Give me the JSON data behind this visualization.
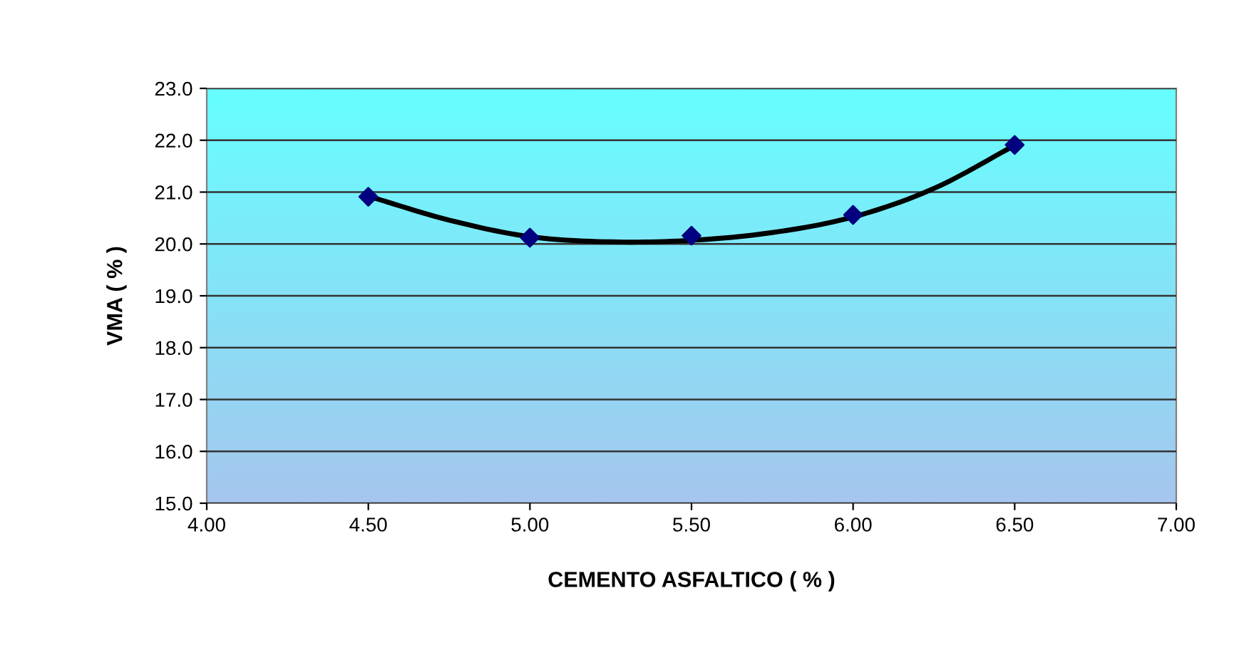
{
  "chart_data": {
    "type": "scatter",
    "xlabel": "CEMENTO ASFALTICO ( % )",
    "ylabel": "VMA ( % )",
    "series": [
      {
        "color": "#000080",
        "marker": "diamond",
        "x": [
          4.5,
          5.0,
          5.5,
          6.0,
          6.5
        ],
        "values": [
          20.91,
          20.12,
          20.16,
          20.56,
          21.91
        ]
      },
      {
        "type": "line",
        "color": "#000000",
        "marker": "none",
        "x": [
          4.5,
          4.75,
          5.0,
          5.25,
          5.5,
          5.75,
          6.0,
          6.25,
          6.5
        ],
        "values": [
          20.92,
          20.46,
          20.14,
          20.04,
          20.07,
          20.22,
          20.52,
          21.07,
          21.9
        ]
      }
    ],
    "xlim": [
      4.0,
      7.0
    ],
    "xticks": [
      {
        "value": 4.0,
        "label": "4.00"
      },
      {
        "value": 4.5,
        "label": "4.50"
      },
      {
        "value": 5.0,
        "label": "5.00"
      },
      {
        "value": 5.5,
        "label": "5.50"
      },
      {
        "value": 6.0,
        "label": "6.00"
      },
      {
        "value": 6.5,
        "label": "6.50"
      },
      {
        "value": 7.0,
        "label": "7.00"
      }
    ],
    "ylim": [
      15.0,
      23.0
    ],
    "yticks": [
      {
        "value": 15,
        "label": "15.0"
      },
      {
        "value": 16,
        "label": "16.0"
      },
      {
        "value": 17,
        "label": "17.0"
      },
      {
        "value": 18,
        "label": "18.0"
      },
      {
        "value": 19,
        "label": "19.0"
      },
      {
        "value": 20,
        "label": "20.0"
      },
      {
        "value": 21,
        "label": "21.0"
      },
      {
        "value": 22,
        "label": "22.0"
      },
      {
        "value": 23,
        "label": "23.0"
      }
    ],
    "grid": "y"
  }
}
